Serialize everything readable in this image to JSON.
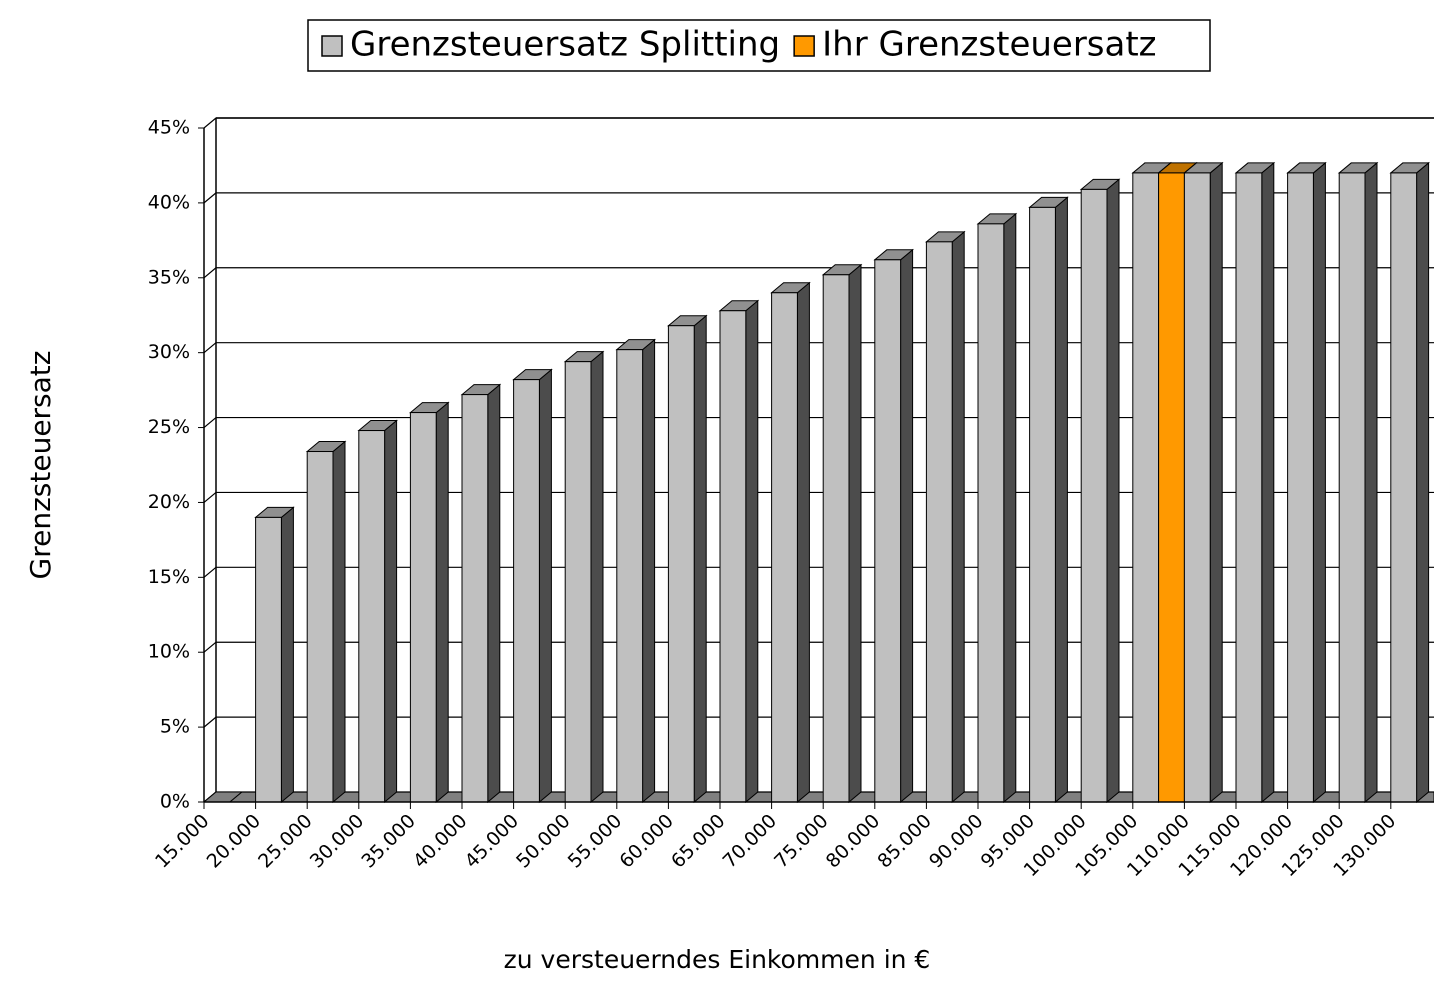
{
  "chart_data": {
    "type": "bar3d",
    "y_label": "Grenzsteuersatz",
    "x_label": "zu versteuerndes Einkommen in €",
    "categories": [
      "15.000",
      "20.000",
      "25.000",
      "30.000",
      "35.000",
      "40.000",
      "45.000",
      "50.000",
      "55.000",
      "60.000",
      "65.000",
      "70.000",
      "75.000",
      "80.000",
      "85.000",
      "90.000",
      "95.000",
      "100.000",
      "105.000",
      "110.000",
      "115.000",
      "120.000",
      "125.000",
      "130.000"
    ],
    "series": [
      {
        "name": "Grenzsteuersatz Splitting",
        "color": "#c0c0c0",
        "values": [
          0,
          19,
          23.4,
          24.8,
          26,
          27.2,
          28.2,
          29.4,
          30.2,
          31.8,
          32.8,
          34,
          35.2,
          36.2,
          37.4,
          38.6,
          39.7,
          40.9,
          42,
          42,
          42,
          42,
          42,
          42
        ]
      },
      {
        "name": "Ihr Grenzsteuersatz",
        "color": "#ff9900",
        "values": [
          null,
          null,
          null,
          null,
          null,
          null,
          null,
          null,
          null,
          null,
          null,
          null,
          null,
          null,
          null,
          null,
          null,
          null,
          42,
          null,
          null,
          null,
          null,
          null
        ]
      }
    ],
    "ylim": [
      0,
      45
    ],
    "yticks": [
      {
        "value": 0,
        "label": "0%"
      },
      {
        "value": 5,
        "label": "5%"
      },
      {
        "value": 10,
        "label": "10%"
      },
      {
        "value": 15,
        "label": "15%"
      },
      {
        "value": 20,
        "label": "20%"
      },
      {
        "value": 25,
        "label": "25%"
      },
      {
        "value": 30,
        "label": "30%"
      },
      {
        "value": 35,
        "label": "35%"
      },
      {
        "value": 40,
        "label": "40%"
      },
      {
        "value": 45,
        "label": "45%"
      }
    ],
    "grid": true
  }
}
